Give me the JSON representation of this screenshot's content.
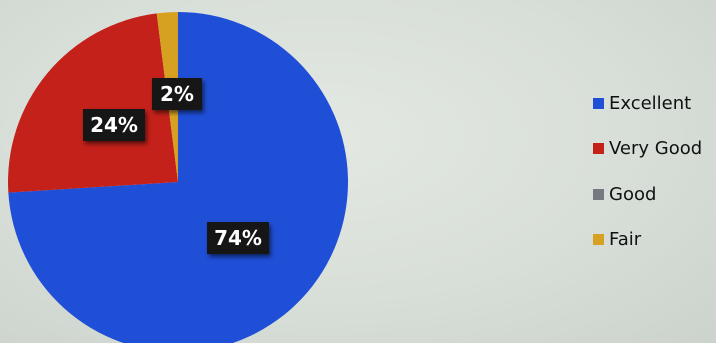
{
  "chart_data": {
    "type": "pie",
    "title": "",
    "slices": [
      {
        "name": "Excellent",
        "value": 74,
        "label": "74%",
        "color": "#1f4fd6"
      },
      {
        "name": "Very Good",
        "value": 24,
        "label": "24%",
        "color": "#c4211a"
      },
      {
        "name": "Good",
        "value": 0,
        "label": "",
        "color": "#767a80"
      },
      {
        "name": "Fair",
        "value": 2,
        "label": "2%",
        "color": "#d6a021"
      }
    ],
    "legend_position": "right"
  }
}
